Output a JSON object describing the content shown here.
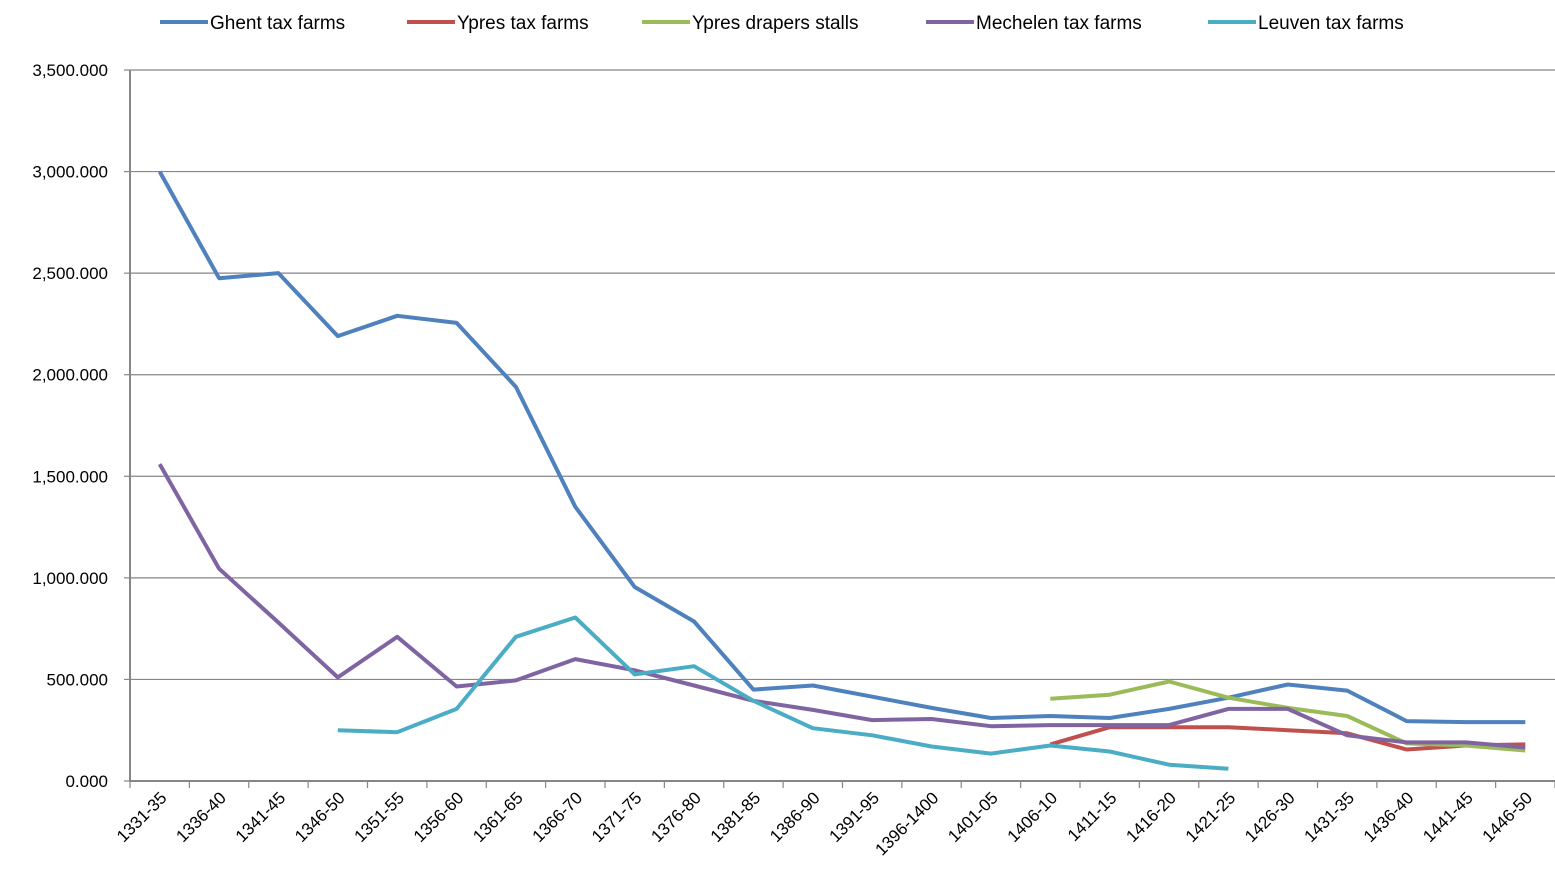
{
  "chart_data": {
    "type": "line",
    "title": "",
    "xlabel": "",
    "ylabel": "",
    "ylim": [
      0,
      3500
    ],
    "y_ticks": [
      0,
      500,
      1000,
      1500,
      2000,
      2500,
      3000,
      3500
    ],
    "y_tick_labels": [
      "0.000",
      "500.000",
      "1,000.000",
      "1,500.000",
      "2,000.000",
      "2,500.000",
      "3,000.000",
      "3,500.000"
    ],
    "grid": "horizontal",
    "legend_position": "top",
    "categories": [
      "1331-35",
      "1336-40",
      "1341-45",
      "1346-50",
      "1351-55",
      "1356-60",
      "1361-65",
      "1366-70",
      "1371-75",
      "1376-80",
      "1381-85",
      "1386-90",
      "1391-95",
      "1396-1400",
      "1401-05",
      "1406-10",
      "1411-15",
      "1416-20",
      "1421-25",
      "1426-30",
      "1431-35",
      "1436-40",
      "1441-45",
      "1446-50"
    ],
    "series": [
      {
        "name": "Ghent tax farms",
        "color": "#4F81BD",
        "values": [
          3000,
          2475,
          2500,
          2190,
          2290,
          2255,
          1940,
          1350,
          955,
          785,
          450,
          470,
          415,
          360,
          310,
          320,
          310,
          355,
          410,
          475,
          445,
          295,
          290,
          290
        ]
      },
      {
        "name": "Ypres tax farms",
        "color": "#C0504D",
        "values": [
          null,
          null,
          null,
          null,
          null,
          null,
          null,
          null,
          null,
          null,
          null,
          null,
          null,
          null,
          null,
          180,
          265,
          265,
          265,
          250,
          235,
          155,
          175,
          180
        ]
      },
      {
        "name": "Ypres drapers stalls",
        "color": "#9BBB59",
        "values": [
          null,
          null,
          null,
          null,
          null,
          null,
          null,
          null,
          null,
          null,
          null,
          null,
          null,
          null,
          null,
          405,
          425,
          490,
          410,
          360,
          320,
          185,
          175,
          150
        ]
      },
      {
        "name": "Mechelen tax farms",
        "color": "#8064A2",
        "values": [
          1560,
          1045,
          780,
          510,
          710,
          465,
          495,
          600,
          545,
          470,
          395,
          350,
          300,
          305,
          270,
          275,
          275,
          275,
          355,
          355,
          225,
          190,
          190,
          165
        ]
      },
      {
        "name": "Leuven tax farms",
        "color": "#4BACC6",
        "values": [
          null,
          null,
          null,
          250,
          240,
          355,
          710,
          805,
          525,
          565,
          395,
          260,
          225,
          170,
          135,
          175,
          145,
          80,
          60,
          null,
          null,
          null,
          null,
          null
        ]
      }
    ]
  }
}
